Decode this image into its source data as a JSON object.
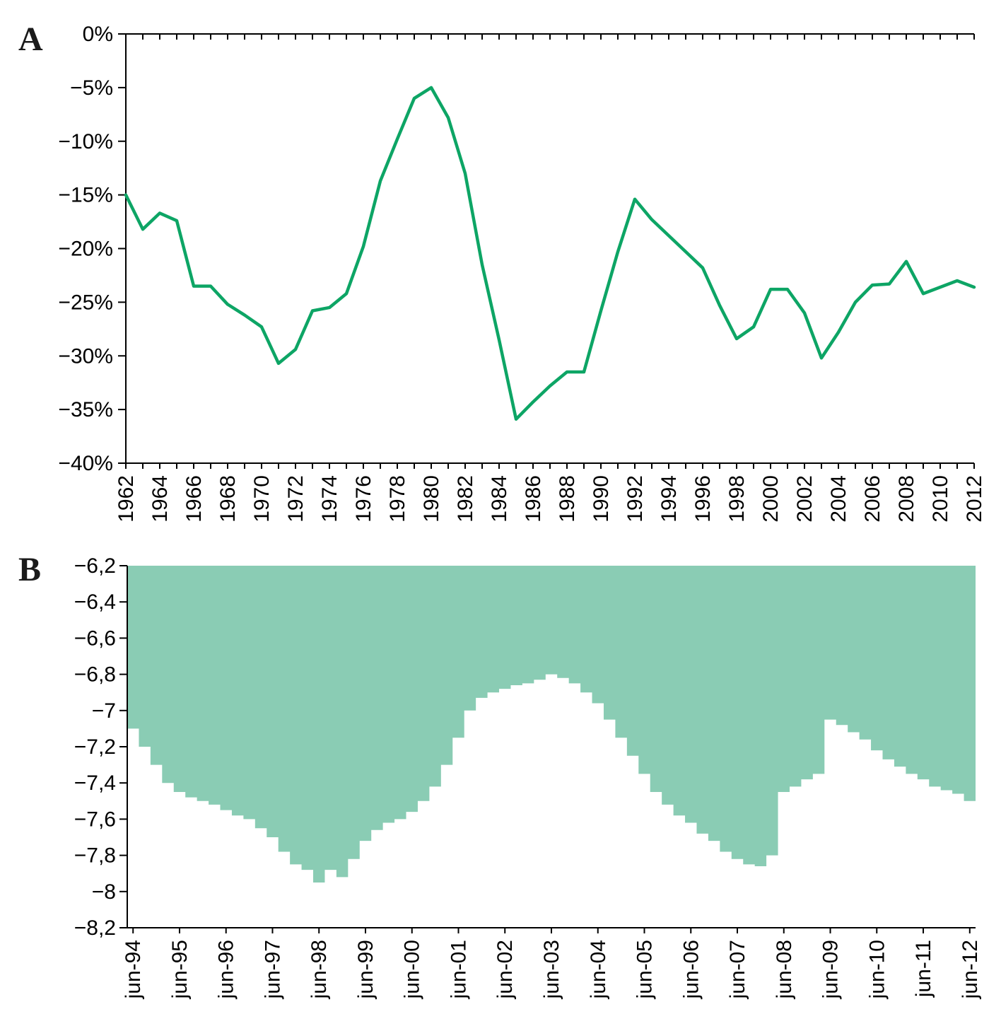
{
  "figure": {
    "background": "#ffffff",
    "axis_color": "#000000",
    "text_color": "#000000"
  },
  "panels": [
    {
      "letter": "A"
    },
    {
      "letter": "B"
    }
  ],
  "chart_data": [
    {
      "type": "line",
      "panel": "A",
      "title": "",
      "line_color": "#0da565",
      "ylim": [
        -40,
        0
      ],
      "ytick_values": [
        0,
        -5,
        -10,
        -15,
        -20,
        -25,
        -30,
        -35,
        -40
      ],
      "ytick_labels": [
        "0%",
        "−5%",
        "−10%",
        "−15%",
        "−20%",
        "−25%",
        "−30%",
        "−35%",
        "−40%"
      ],
      "x": [
        1962,
        1963,
        1964,
        1965,
        1966,
        1967,
        1968,
        1969,
        1970,
        1971,
        1972,
        1973,
        1974,
        1975,
        1976,
        1977,
        1978,
        1979,
        1980,
        1981,
        1982,
        1983,
        1984,
        1985,
        1986,
        1987,
        1988,
        1989,
        1990,
        1991,
        1992,
        1993,
        1994,
        1995,
        1996,
        1997,
        1998,
        1999,
        2000,
        2001,
        2002,
        2003,
        2004,
        2005,
        2006,
        2007,
        2008,
        2009,
        2010,
        2011,
        2012
      ],
      "values": [
        -15.0,
        -18.2,
        -16.7,
        -17.4,
        -23.5,
        -23.5,
        -25.2,
        -26.2,
        -27.3,
        -30.7,
        -29.4,
        -25.8,
        -25.5,
        -24.2,
        -19.8,
        -13.7,
        -9.8,
        -6.0,
        -5.0,
        -7.8,
        -13.0,
        -21.5,
        -28.5,
        -35.9,
        -34.3,
        -32.8,
        -31.5,
        -31.5,
        -25.8,
        -20.3,
        -15.4,
        -17.3,
        -18.8,
        -20.3,
        -21.8,
        -25.3,
        -28.4,
        -27.3,
        -23.8,
        -23.8,
        -26.0,
        -30.2,
        -27.8,
        -25.0,
        -23.4,
        -23.3,
        -21.2,
        -24.2,
        -23.6,
        -23.0,
        -23.6
      ],
      "xtick_labels": [
        "1962",
        "1964",
        "1966",
        "1968",
        "1970",
        "1972",
        "1974",
        "1976",
        "1978",
        "1980",
        "1982",
        "1984",
        "1986",
        "1988",
        "1990",
        "1992",
        "1994",
        "1996",
        "1998",
        "2000",
        "2002",
        "2004",
        "2006",
        "2008",
        "2010",
        "2012"
      ],
      "xtick_label_every_n_points": 2
    },
    {
      "type": "area",
      "panel": "B",
      "title": "",
      "fill_color": "#8accb4",
      "ylim": [
        -8.2,
        -6.2
      ],
      "ytick_values": [
        -6.2,
        -6.4,
        -6.6,
        -6.8,
        -7,
        -7.2,
        -7.4,
        -7.6,
        -7.8,
        -8,
        -8.2
      ],
      "ytick_labels": [
        "−6,2",
        "−6,4",
        "−6,6",
        "−6,8",
        "−7",
        "−7,2",
        "−7,4",
        "−7,6",
        "−7,8",
        "−8",
        "−8,2"
      ],
      "frequency": "quarterly",
      "values": [
        -7.1,
        -7.2,
        -7.3,
        -7.4,
        -7.45,
        -7.48,
        -7.5,
        -7.52,
        -7.55,
        -7.58,
        -7.6,
        -7.65,
        -7.7,
        -7.78,
        -7.85,
        -7.88,
        -7.95,
        -7.88,
        -7.92,
        -7.82,
        -7.72,
        -7.66,
        -7.62,
        -7.6,
        -7.56,
        -7.5,
        -7.42,
        -7.3,
        -7.15,
        -7.0,
        -6.93,
        -6.9,
        -6.88,
        -6.86,
        -6.85,
        -6.83,
        -6.8,
        -6.82,
        -6.85,
        -6.9,
        -6.96,
        -7.05,
        -7.15,
        -7.25,
        -7.35,
        -7.45,
        -7.52,
        -7.58,
        -7.62,
        -7.68,
        -7.72,
        -7.78,
        -7.82,
        -7.85,
        -7.86,
        -7.8,
        -7.45,
        -7.42,
        -7.38,
        -7.35,
        -7.05,
        -7.08,
        -7.12,
        -7.16,
        -7.22,
        -7.27,
        -7.31,
        -7.35,
        -7.38,
        -7.42,
        -7.44,
        -7.46,
        -7.5
      ],
      "xtick_labels": [
        "jun-94",
        "jun-95",
        "jun-96",
        "jun-97",
        "jun-98",
        "jun-99",
        "jun-00",
        "jun-01",
        "jun-02",
        "jun-03",
        "jun-04",
        "jun-05",
        "jun-06",
        "jun-07",
        "jun-08",
        "jun-09",
        "jun-10",
        "jun-11",
        "jun-12"
      ],
      "xtick_label_every_n_points": 4
    }
  ]
}
